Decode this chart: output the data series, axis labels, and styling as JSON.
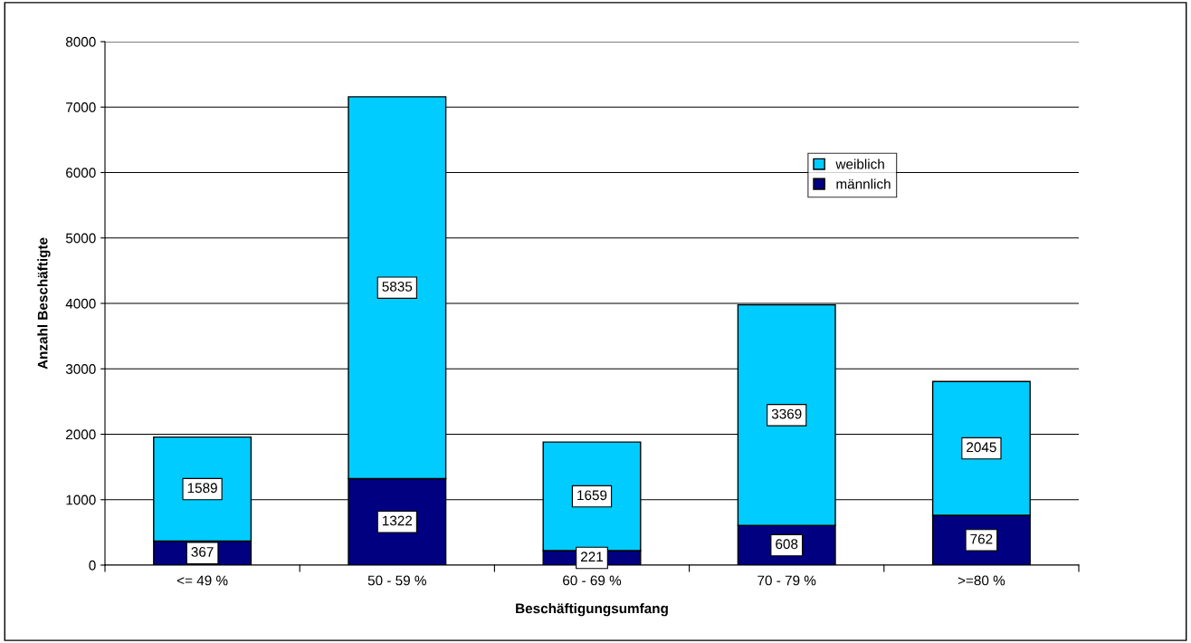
{
  "chart_data": {
    "type": "bar",
    "stacked": true,
    "xlabel": "Beschäftigungsumfang",
    "ylabel": "Anzahl Beschäftigte",
    "categories": [
      "<= 49 %",
      "50 - 59 %",
      "60 - 69 %",
      "70 - 79 %",
      ">=80 %"
    ],
    "series": [
      {
        "name": "männlich",
        "color": "#000080",
        "values": [
          367,
          1322,
          221,
          608,
          762
        ]
      },
      {
        "name": "weiblich",
        "color": "#00ccff",
        "values": [
          1589,
          5835,
          1659,
          3369,
          2045
        ]
      }
    ],
    "ylim": [
      0,
      8000
    ],
    "yticks": [
      0,
      1000,
      2000,
      3000,
      4000,
      5000,
      6000,
      7000,
      8000
    ],
    "grid": "y",
    "legend": "top right",
    "data_labels": true
  }
}
